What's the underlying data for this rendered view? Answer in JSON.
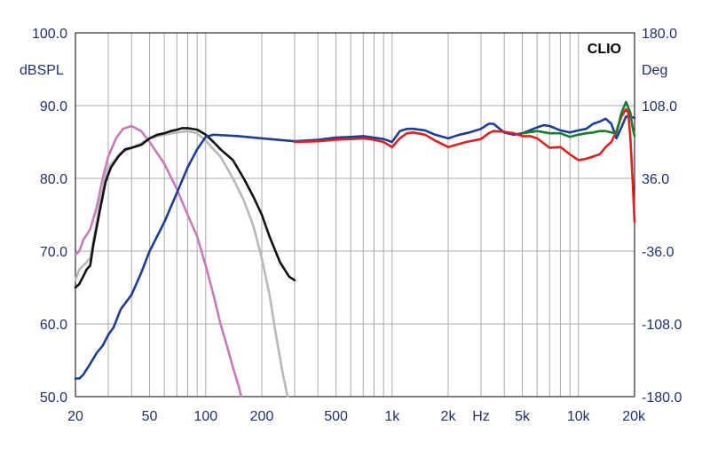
{
  "chart_data": {
    "type": "line",
    "brand_label": "CLIO",
    "x_scale": "log",
    "xlim": [
      20,
      20000
    ],
    "left_axis": {
      "unit": "dBSPL",
      "ylim": [
        50,
        100
      ],
      "ticks": [
        {
          "value": 100,
          "label": "100.0"
        },
        {
          "value": 90,
          "label": "90.0"
        },
        {
          "value": 80,
          "label": "80.0"
        },
        {
          "value": 70,
          "label": "70.0"
        },
        {
          "value": 60,
          "label": "60.0"
        },
        {
          "value": 50,
          "label": "50.0"
        }
      ]
    },
    "right_axis": {
      "unit": "Deg",
      "ylim": [
        -180,
        180
      ],
      "ticks": [
        {
          "value": 180,
          "label": "180.0"
        },
        {
          "value": 108,
          "label": "108.0"
        },
        {
          "value": 36,
          "label": "36.0"
        },
        {
          "value": -36,
          "label": "-36.0"
        },
        {
          "value": -108,
          "label": "-108.0"
        },
        {
          "value": -180,
          "label": "-180.0"
        }
      ]
    },
    "x_ticks": [
      {
        "value": 20,
        "label": "20"
      },
      {
        "value": 50,
        "label": "50"
      },
      {
        "value": 100,
        "label": "100"
      },
      {
        "value": 200,
        "label": "200"
      },
      {
        "value": 500,
        "label": "500"
      },
      {
        "value": 1000,
        "label": "1k"
      },
      {
        "value": 2000,
        "label": "2k"
      },
      {
        "value": 3000,
        "label": "Hz"
      },
      {
        "value": 5000,
        "label": "5k"
      },
      {
        "value": 10000,
        "label": "10k"
      },
      {
        "value": 20000,
        "label": "20k"
      }
    ],
    "grid": true,
    "series": [
      {
        "color": "#c87ab8",
        "points": [
          [
            20,
            69.5
          ],
          [
            21,
            70
          ],
          [
            22,
            71.5
          ],
          [
            24,
            73
          ],
          [
            26,
            76
          ],
          [
            28,
            80
          ],
          [
            30,
            83
          ],
          [
            33,
            85.5
          ],
          [
            36,
            86.8
          ],
          [
            40,
            87.2
          ],
          [
            45,
            86.5
          ],
          [
            50,
            85
          ],
          [
            60,
            82
          ],
          [
            70,
            78.5
          ],
          [
            80,
            75
          ],
          [
            90,
            72
          ],
          [
            100,
            68
          ],
          [
            110,
            64
          ],
          [
            120,
            60
          ],
          [
            130,
            57
          ],
          [
            140,
            54
          ],
          [
            150,
            51.5
          ],
          [
            155,
            50
          ]
        ]
      },
      {
        "color": "#b8b8b8",
        "points": [
          [
            20,
            66
          ],
          [
            21,
            67.5
          ],
          [
            22,
            68
          ],
          [
            24,
            69
          ],
          [
            26,
            74
          ],
          [
            28,
            79
          ],
          [
            30,
            81.5
          ],
          [
            35,
            83.5
          ],
          [
            40,
            84.2
          ],
          [
            45,
            84.8
          ],
          [
            50,
            85.5
          ],
          [
            60,
            86
          ],
          [
            70,
            86.3
          ],
          [
            80,
            86.5
          ],
          [
            90,
            86.2
          ],
          [
            100,
            85.2
          ],
          [
            110,
            84
          ],
          [
            120,
            83
          ],
          [
            140,
            80
          ],
          [
            160,
            77
          ],
          [
            180,
            73.5
          ],
          [
            200,
            69
          ],
          [
            220,
            64
          ],
          [
            240,
            58
          ],
          [
            260,
            53
          ],
          [
            275,
            50
          ]
        ]
      },
      {
        "color": "#111111",
        "points": [
          [
            20,
            65
          ],
          [
            21,
            65.5
          ],
          [
            22,
            66.5
          ],
          [
            23,
            67.5
          ],
          [
            24,
            68
          ],
          [
            25,
            71
          ],
          [
            27,
            75.5
          ],
          [
            29,
            79.5
          ],
          [
            31,
            81.5
          ],
          [
            34,
            83
          ],
          [
            37,
            84
          ],
          [
            40,
            84.2
          ],
          [
            45,
            84.6
          ],
          [
            50,
            85.5
          ],
          [
            55,
            86
          ],
          [
            60,
            86.2
          ],
          [
            65,
            86.5
          ],
          [
            70,
            86.7
          ],
          [
            75,
            86.9
          ],
          [
            80,
            86.9
          ],
          [
            90,
            86.7
          ],
          [
            100,
            86
          ],
          [
            110,
            85
          ],
          [
            120,
            84
          ],
          [
            140,
            82.5
          ],
          [
            160,
            80
          ],
          [
            180,
            77.5
          ],
          [
            200,
            75
          ],
          [
            220,
            72
          ],
          [
            250,
            68.5
          ],
          [
            280,
            66.5
          ],
          [
            300,
            66
          ]
        ]
      },
      {
        "color": "#1d3d96",
        "points": [
          [
            20,
            52.5
          ],
          [
            21,
            52.5
          ],
          [
            22,
            53
          ],
          [
            24,
            54.5
          ],
          [
            26,
            56
          ],
          [
            28,
            57
          ],
          [
            30,
            58.5
          ],
          [
            32,
            59.5
          ],
          [
            35,
            62
          ],
          [
            40,
            64
          ],
          [
            45,
            67
          ],
          [
            50,
            70
          ],
          [
            60,
            74
          ],
          [
            70,
            78
          ],
          [
            80,
            81.5
          ],
          [
            90,
            84
          ],
          [
            100,
            85.7
          ],
          [
            110,
            86
          ],
          [
            150,
            85.8
          ],
          [
            200,
            85.5
          ],
          [
            300,
            85.1
          ],
          [
            400,
            85.3
          ],
          [
            500,
            85.6
          ],
          [
            600,
            85.7
          ],
          [
            700,
            85.8
          ],
          [
            800,
            85.6
          ],
          [
            900,
            85.4
          ],
          [
            1000,
            85
          ],
          [
            1100,
            86.5
          ],
          [
            1200,
            86.8
          ],
          [
            1300,
            86.8
          ],
          [
            1500,
            86.6
          ],
          [
            1700,
            86
          ],
          [
            2000,
            85.5
          ],
          [
            2300,
            86
          ],
          [
            2600,
            86.3
          ],
          [
            3000,
            86.8
          ],
          [
            3300,
            87.5
          ],
          [
            3500,
            87.5
          ],
          [
            4000,
            86.3
          ],
          [
            4500,
            86
          ],
          [
            5000,
            86.2
          ],
          [
            6000,
            87
          ],
          [
            6500,
            87.3
          ],
          [
            7000,
            87.2
          ],
          [
            8000,
            86.6
          ],
          [
            9000,
            86.3
          ],
          [
            10000,
            86.6
          ],
          [
            11000,
            86.8
          ],
          [
            12000,
            87.5
          ],
          [
            13000,
            87.8
          ],
          [
            14000,
            88.2
          ],
          [
            15000,
            87.5
          ],
          [
            16000,
            85.5
          ],
          [
            17000,
            87
          ],
          [
            18000,
            88.5
          ],
          [
            19000,
            88.5
          ],
          [
            20000,
            88.3
          ]
        ]
      },
      {
        "color": "#df2020",
        "points": [
          [
            300,
            85
          ],
          [
            400,
            85.1
          ],
          [
            500,
            85.3
          ],
          [
            600,
            85.4
          ],
          [
            700,
            85.5
          ],
          [
            800,
            85.3
          ],
          [
            900,
            85
          ],
          [
            1000,
            84.3
          ],
          [
            1100,
            85.5
          ],
          [
            1200,
            86.2
          ],
          [
            1300,
            86.3
          ],
          [
            1500,
            86
          ],
          [
            1700,
            85.2
          ],
          [
            2000,
            84.3
          ],
          [
            2200,
            84.6
          ],
          [
            2500,
            85
          ],
          [
            3000,
            85.4
          ],
          [
            3300,
            86.2
          ],
          [
            3500,
            86.5
          ],
          [
            4000,
            86.4
          ],
          [
            4500,
            86.2
          ],
          [
            5000,
            85.8
          ],
          [
            5500,
            85.8
          ],
          [
            6000,
            85.5
          ],
          [
            7000,
            84.2
          ],
          [
            8000,
            84.3
          ],
          [
            9000,
            83.3
          ],
          [
            10000,
            82.5
          ],
          [
            11000,
            82.7
          ],
          [
            12000,
            83.0
          ],
          [
            13000,
            83.3
          ],
          [
            14000,
            84.3
          ],
          [
            15000,
            85.0
          ],
          [
            16000,
            86.5
          ],
          [
            17000,
            88.5
          ],
          [
            18000,
            89.5
          ],
          [
            18500,
            89
          ],
          [
            19000,
            85.5
          ],
          [
            19500,
            80
          ],
          [
            20000,
            74
          ]
        ]
      },
      {
        "color": "#1a7c2a",
        "points": [
          [
            5000,
            86.2
          ],
          [
            6000,
            86.5
          ],
          [
            7000,
            86.2
          ],
          [
            8000,
            86.2
          ],
          [
            9000,
            85.7
          ],
          [
            10000,
            86.0
          ],
          [
            11000,
            86.2
          ],
          [
            12000,
            86.3
          ],
          [
            13000,
            86.5
          ],
          [
            14000,
            86.5
          ],
          [
            15000,
            86.3
          ],
          [
            16000,
            86.2
          ],
          [
            17000,
            89
          ],
          [
            18000,
            90.5
          ],
          [
            19000,
            89
          ],
          [
            19500,
            87
          ],
          [
            20000,
            85.8
          ]
        ]
      }
    ]
  }
}
